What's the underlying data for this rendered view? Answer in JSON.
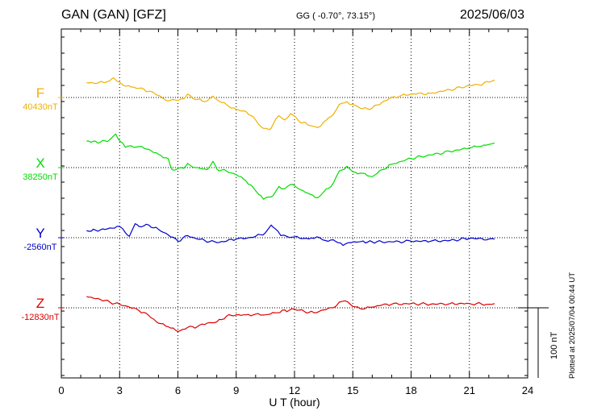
{
  "header": {
    "station": "GAN (GAN)  [GFZ]",
    "coords": "GG ( -0.70°,  73.15°)",
    "date": "2025/06/03"
  },
  "footer": {
    "plotted": "Plotted at 2025/07/04 00:44 UT"
  },
  "scale_bar": {
    "label": "100 nT",
    "value_nT": 100
  },
  "colors": {
    "F": "#f0b000",
    "X": "#00dd00",
    "Y": "#0000cc",
    "Z": "#dd0000"
  },
  "chart_data": {
    "type": "line",
    "xlabel": "U T (hour)",
    "xlim": [
      0,
      24
    ],
    "xticks": [
      0,
      3,
      6,
      9,
      12,
      15,
      18,
      21,
      24
    ],
    "grid": true,
    "series": [
      {
        "name": "F",
        "baseline_label": "40430nT",
        "baseline_nT": 40430,
        "color": "#f0b000",
        "x": [
          1.3,
          2.2,
          2.5,
          2.7,
          3.0,
          3.3,
          3.6,
          4.0,
          4.5,
          5.0,
          5.5,
          5.7,
          5.9,
          6.3,
          6.5,
          6.9,
          7.5,
          7.8,
          8.0,
          8.5,
          9.0,
          9.5,
          10.0,
          10.4,
          10.7,
          10.9,
          11.2,
          11.5,
          11.8,
          12.2,
          12.8,
          13.2,
          13.5,
          14.0,
          14.3,
          14.7,
          15.0,
          15.5,
          16.0,
          16.5,
          17.0,
          17.5,
          18.0,
          19.0,
          20.0,
          21.0,
          21.5,
          22.0,
          22.3
        ],
        "values": [
          21,
          21,
          24,
          28,
          22,
          16,
          15,
          13,
          9,
          3,
          -5,
          -3,
          -4,
          -2,
          5,
          -3,
          -5,
          2,
          -3,
          -10,
          -17,
          -20,
          -32,
          -44,
          -46,
          -38,
          -26,
          -32,
          -23,
          -33,
          -40,
          -43,
          -35,
          -24,
          -10,
          -6,
          -10,
          -16,
          -15,
          -7,
          0,
          3,
          5,
          6,
          11,
          17,
          18,
          22,
          25
        ]
      },
      {
        "name": "X",
        "baseline_label": "38250nT",
        "baseline_nT": 38250,
        "color": "#00dd00",
        "x": [
          1.3,
          2.0,
          2.5,
          2.8,
          3.0,
          3.3,
          3.6,
          4.0,
          4.5,
          5.0,
          5.5,
          5.7,
          5.9,
          6.3,
          6.5,
          6.9,
          7.5,
          7.8,
          8.0,
          8.5,
          9.0,
          9.5,
          10.0,
          10.4,
          10.7,
          10.9,
          11.2,
          11.5,
          11.8,
          12.2,
          12.8,
          13.2,
          13.5,
          14.0,
          14.3,
          14.7,
          15.0,
          15.5,
          16.0,
          16.5,
          17.0,
          17.5,
          18.0,
          19.0,
          20.0,
          21.0,
          21.5,
          22.0,
          22.3
        ],
        "values": [
          38,
          36,
          40,
          48,
          38,
          29,
          31,
          30,
          26,
          19,
          13,
          -3,
          -3,
          -1,
          6,
          0,
          -3,
          9,
          -2,
          -5,
          -10,
          -19,
          -33,
          -45,
          -42,
          -40,
          -27,
          -30,
          -24,
          -30,
          -38,
          -43,
          -35,
          -22,
          -5,
          2,
          -6,
          -8,
          -13,
          -3,
          5,
          9,
          13,
          18,
          23,
          28,
          30,
          33,
          35
        ]
      },
      {
        "name": "Y",
        "baseline_label": "-2560nT",
        "baseline_nT": -2560,
        "color": "#0000cc",
        "x": [
          1.3,
          2.0,
          3.0,
          3.3,
          3.5,
          3.8,
          4.0,
          4.5,
          5.0,
          5.5,
          6.0,
          6.5,
          7.0,
          8.0,
          9.0,
          9.5,
          10.0,
          10.5,
          10.8,
          11.0,
          11.3,
          11.6,
          12.0,
          12.5,
          13.0,
          13.3,
          13.6,
          14.0,
          14.5,
          14.8,
          15.3,
          16.0,
          17.0,
          18.0,
          19.0,
          20.0,
          21.0,
          22.0,
          22.3
        ],
        "values": [
          10,
          11,
          16,
          7,
          2,
          20,
          16,
          18,
          12,
          4,
          -5,
          3,
          -2,
          -7,
          -2,
          -1,
          2,
          7,
          18,
          13,
          3,
          2,
          1,
          -1,
          -1,
          0,
          -4,
          -3,
          -11,
          -7,
          -6,
          -6,
          -6,
          -5,
          -5,
          -4,
          -1,
          -2,
          -2
        ]
      },
      {
        "name": "Z",
        "baseline_label": "-12830nT",
        "baseline_nT": -12830,
        "color": "#dd0000",
        "x": [
          1.3,
          2.0,
          2.5,
          3.0,
          3.5,
          4.0,
          4.5,
          5.0,
          5.5,
          6.0,
          6.5,
          7.0,
          7.5,
          8.0,
          8.5,
          9.0,
          9.5,
          10.0,
          10.5,
          11.0,
          11.5,
          11.7,
          12.0,
          12.5,
          13.0,
          13.5,
          14.0,
          14.3,
          14.6,
          15.0,
          15.5,
          16.0,
          16.5,
          17.0,
          18.0,
          19.0,
          20.0,
          21.0,
          22.0,
          22.3
        ],
        "values": [
          16,
          12,
          8,
          5,
          1,
          -4,
          -11,
          -22,
          -27,
          -34,
          -28,
          -27,
          -22,
          -20,
          -12,
          -10,
          -10,
          -9,
          -10,
          -7,
          -3,
          -4,
          -2,
          -5,
          -7,
          -3,
          0,
          8,
          10,
          2,
          -2,
          1,
          4,
          5,
          6,
          5,
          6,
          6,
          5,
          6
        ]
      }
    ]
  }
}
